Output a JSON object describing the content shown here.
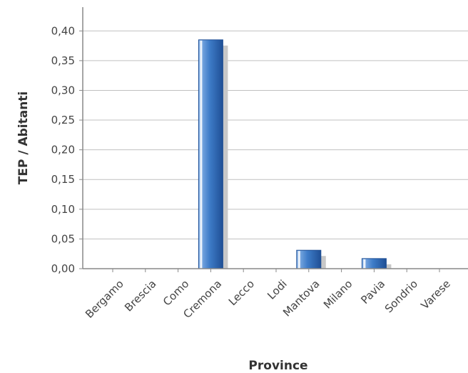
{
  "chart_data": {
    "type": "bar",
    "title": "",
    "xlabel": "Province",
    "ylabel": "TEP / Abitanti",
    "categories": [
      "Bergamo",
      "Brescia",
      "Como",
      "Cremona",
      "Lecco",
      "Lodi",
      "Mantova",
      "Milano",
      "Pavia",
      "Sondrio",
      "Varese"
    ],
    "values": [
      0.0,
      0.0,
      0.0,
      0.385,
      0.0,
      0.0,
      0.031,
      0.0,
      0.017,
      0.0,
      0.0
    ],
    "ylim": [
      0,
      0.44
    ],
    "yticks": [
      "0,00",
      "0,05",
      "0,10",
      "0,15",
      "0,20",
      "0,25",
      "0,30",
      "0,35",
      "0,40"
    ],
    "grid": true,
    "colors": {
      "bar": "#3e7cc8",
      "bar_dark": "#1f4f95",
      "bar_light": "#8fb8ea",
      "shadow": "#c8c8c8",
      "grid": "#c0c0c0",
      "axis": "#888888"
    }
  }
}
